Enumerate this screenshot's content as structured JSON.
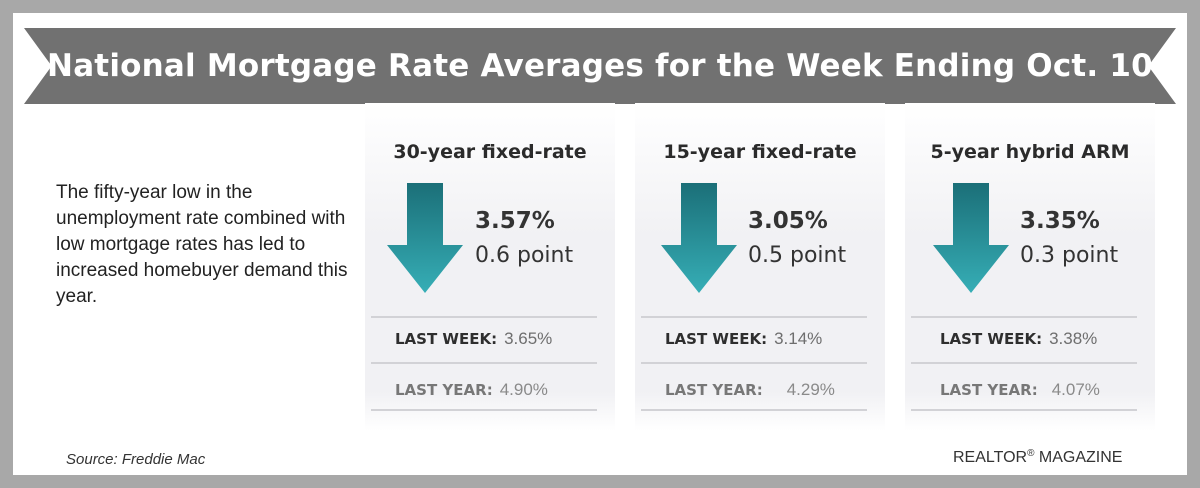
{
  "header": {
    "title": "National Mortgage Rate Averages for the Week Ending Oct. 10"
  },
  "intro": {
    "text": "The fifty-year low in the unemployment rate combined with low mortgage rates has led to increased homebuyer demand this year."
  },
  "colors": {
    "arrow_top": "#1b6f78",
    "arrow_bottom": "#36aeb6",
    "banner": "#717171",
    "frame": "#a8a8a8"
  },
  "cards": [
    {
      "title": "30-year fixed-rate",
      "direction": "down-arrow-icon",
      "rate": "3.57%",
      "change": "0.6 point",
      "last_week_label": "LAST WEEK:",
      "last_week_value": "3.65%",
      "last_year_label": "LAST YEAR:",
      "last_year_value": "4.90%"
    },
    {
      "title": "15-year fixed-rate",
      "direction": "down-arrow-icon",
      "rate": "3.05%",
      "change": "0.5 point",
      "last_week_label": "LAST WEEK:",
      "last_week_value": "3.14%",
      "last_year_label": "LAST YEAR:",
      "last_year_value": "4.29%"
    },
    {
      "title": "5-year hybrid ARM",
      "direction": "down-arrow-icon",
      "rate": "3.35%",
      "change": "0.3 point",
      "last_week_label": "LAST WEEK:",
      "last_week_value": "3.38%",
      "last_year_label": "LAST YEAR:",
      "last_year_value": "4.07%"
    }
  ],
  "footer": {
    "source": "Source: Freddie Mac",
    "brand": "REALTOR",
    "brand_mark": "®",
    "brand_suffix": " MAGAZINE"
  }
}
